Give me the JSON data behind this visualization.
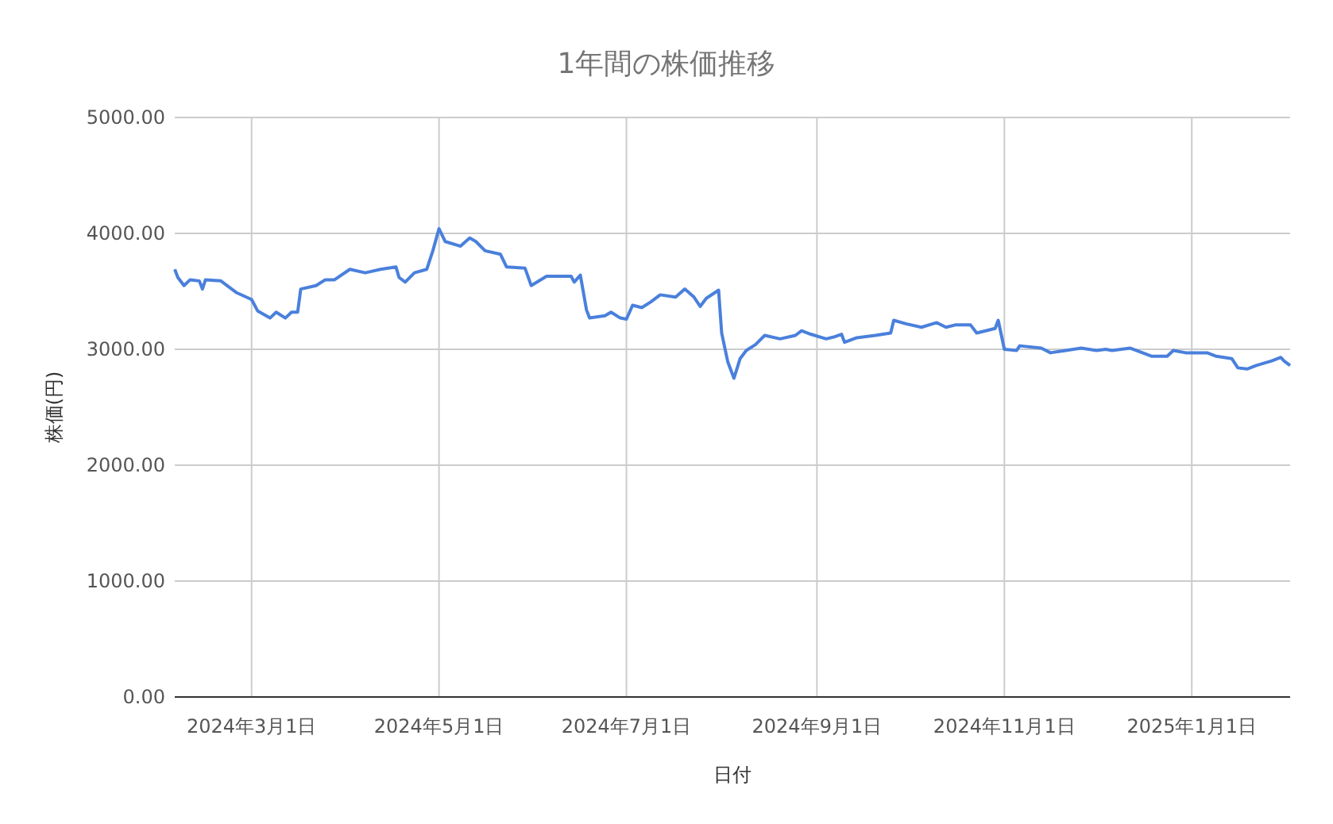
{
  "chart_data": {
    "type": "line",
    "title": "1年間の株価推移",
    "xlabel": "日付",
    "ylabel": "株価(円)",
    "x": [
      "2024-02-05",
      "2024-02-06",
      "2024-02-08",
      "2024-02-10",
      "2024-02-13",
      "2024-02-14",
      "2024-02-15",
      "2024-02-20",
      "2024-02-25",
      "2024-03-01",
      "2024-03-03",
      "2024-03-07",
      "2024-03-09",
      "2024-03-12",
      "2024-03-14",
      "2024-03-16",
      "2024-03-17",
      "2024-03-22",
      "2024-03-25",
      "2024-03-28",
      "2024-04-02",
      "2024-04-07",
      "2024-04-12",
      "2024-04-17",
      "2024-04-18",
      "2024-04-20",
      "2024-04-23",
      "2024-04-27",
      "2024-04-29",
      "2024-05-01",
      "2024-05-03",
      "2024-05-08",
      "2024-05-11",
      "2024-05-13",
      "2024-05-16",
      "2024-05-21",
      "2024-05-23",
      "2024-05-29",
      "2024-05-31",
      "2024-06-05",
      "2024-06-08",
      "2024-06-13",
      "2024-06-14",
      "2024-06-16",
      "2024-06-18",
      "2024-06-19",
      "2024-06-24",
      "2024-06-26",
      "2024-06-29",
      "2024-07-01",
      "2024-07-03",
      "2024-07-06",
      "2024-07-09",
      "2024-07-12",
      "2024-07-17",
      "2024-07-20",
      "2024-07-23",
      "2024-07-25",
      "2024-07-27",
      "2024-07-31",
      "2024-08-01",
      "2024-08-03",
      "2024-08-05",
      "2024-08-07",
      "2024-08-09",
      "2024-08-12",
      "2024-08-15",
      "2024-08-20",
      "2024-08-25",
      "2024-08-27",
      "2024-08-30",
      "2024-09-04",
      "2024-09-07",
      "2024-09-09",
      "2024-09-10",
      "2024-09-14",
      "2024-09-20",
      "2024-09-25",
      "2024-09-26",
      "2024-09-30",
      "2024-10-05",
      "2024-10-10",
      "2024-10-13",
      "2024-10-16",
      "2024-10-21",
      "2024-10-23",
      "2024-10-29",
      "2024-10-30",
      "2024-11-01",
      "2024-11-05",
      "2024-11-06",
      "2024-11-13",
      "2024-11-16",
      "2024-11-21",
      "2024-11-26",
      "2024-12-01",
      "2024-12-04",
      "2024-12-06",
      "2024-12-12",
      "2024-12-17",
      "2024-12-19",
      "2024-12-24",
      "2024-12-26",
      "2024-12-30",
      "2025-01-06",
      "2025-01-09",
      "2025-01-14",
      "2025-01-16",
      "2025-01-19",
      "2025-01-22",
      "2025-01-27",
      "2025-01-30",
      "2025-01-31",
      "2025-02-02"
    ],
    "series": [
      {
        "color": "#4a80dc",
        "values": [
          3690,
          3620,
          3550,
          3600,
          3590,
          3520,
          3600,
          3590,
          3490,
          3430,
          3330,
          3270,
          3320,
          3270,
          3320,
          3320,
          3520,
          3550,
          3600,
          3600,
          3690,
          3660,
          3690,
          3710,
          3620,
          3580,
          3660,
          3690,
          3850,
          4040,
          3930,
          3890,
          3960,
          3930,
          3850,
          3820,
          3710,
          3700,
          3550,
          3630,
          3630,
          3630,
          3580,
          3640,
          3340,
          3270,
          3290,
          3320,
          3270,
          3260,
          3380,
          3360,
          3410,
          3470,
          3450,
          3520,
          3450,
          3370,
          3440,
          3510,
          3140,
          2890,
          2750,
          2920,
          2990,
          3040,
          3120,
          3090,
          3120,
          3160,
          3130,
          3090,
          3110,
          3130,
          3060,
          3100,
          3120,
          3140,
          3250,
          3220,
          3190,
          3230,
          3190,
          3210,
          3210,
          3140,
          3180,
          3250,
          3000,
          2990,
          3030,
          3010,
          2970,
          2990,
          3010,
          2990,
          3000,
          2990,
          3010,
          2960,
          2940,
          2940,
          2990,
          2970,
          2970,
          2940,
          2920,
          2840,
          2830,
          2860,
          2900,
          2930,
          2900,
          2860
        ]
      }
    ],
    "xlim": [
      "2024-02-05",
      "2025-02-02"
    ],
    "xticks": [
      {
        "value": "2024-03-01",
        "label": "2024年3月1日"
      },
      {
        "value": "2024-05-01",
        "label": "2024年5月1日"
      },
      {
        "value": "2024-07-01",
        "label": "2024年7月1日"
      },
      {
        "value": "2024-09-01",
        "label": "2024年9月1日"
      },
      {
        "value": "2024-11-01",
        "label": "2024年11月1日"
      },
      {
        "value": "2025-01-01",
        "label": "2025年1月1日"
      }
    ],
    "ylim": [
      0,
      5000
    ],
    "yticks": [
      {
        "value": 0,
        "label": "0.00"
      },
      {
        "value": 1000,
        "label": "1000.00"
      },
      {
        "value": 2000,
        "label": "2000.00"
      },
      {
        "value": 3000,
        "label": "3000.00"
      },
      {
        "value": 4000,
        "label": "4000.00"
      },
      {
        "value": 5000,
        "label": "5000.00"
      }
    ],
    "grid": true
  }
}
